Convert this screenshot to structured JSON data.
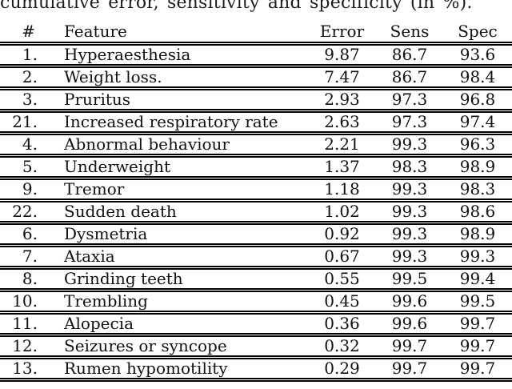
{
  "caption": "cumulative error, sensitivity and specificity (in %).",
  "table": {
    "headers": {
      "num": "#",
      "feature": "Feature",
      "error": "Error",
      "sens": "Sens",
      "spec": "Spec"
    },
    "rows": [
      {
        "num": "1.",
        "feature": "Hyperaesthesia",
        "error": "9.87",
        "sens": "86.7",
        "spec": "93.6"
      },
      {
        "num": "2.",
        "feature": "Weight loss.",
        "error": "7.47",
        "sens": "86.7",
        "spec": "98.4"
      },
      {
        "num": "3.",
        "feature": "Pruritus",
        "error": "2.93",
        "sens": "97.3",
        "spec": "96.8"
      },
      {
        "num": "21.",
        "feature": "Increased respiratory rate",
        "error": "2.63",
        "sens": "97.3",
        "spec": "97.4"
      },
      {
        "num": "4.",
        "feature": "Abnormal behaviour",
        "error": "2.21",
        "sens": "99.3",
        "spec": "96.3"
      },
      {
        "num": "5.",
        "feature": "Underweight",
        "error": "1.37",
        "sens": "98.3",
        "spec": "98.9"
      },
      {
        "num": "9.",
        "feature": "Tremor",
        "error": "1.18",
        "sens": "99.3",
        "spec": "98.3"
      },
      {
        "num": "22.",
        "feature": "Sudden death",
        "error": "1.02",
        "sens": "99.3",
        "spec": "98.6"
      },
      {
        "num": "6.",
        "feature": "Dysmetria",
        "error": "0.92",
        "sens": "99.3",
        "spec": "98.9"
      },
      {
        "num": "7.",
        "feature": "Ataxia",
        "error": "0.67",
        "sens": "99.3",
        "spec": "99.3"
      },
      {
        "num": "8.",
        "feature": "Grinding teeth",
        "error": "0.55",
        "sens": "99.5",
        "spec": "99.4"
      },
      {
        "num": "10.",
        "feature": "Trembling",
        "error": "0.45",
        "sens": "99.6",
        "spec": "99.5"
      },
      {
        "num": "11.",
        "feature": "Alopecia",
        "error": "0.36",
        "sens": "99.6",
        "spec": "99.7"
      },
      {
        "num": "12.",
        "feature": "Seizures or syncope",
        "error": "0.32",
        "sens": "99.7",
        "spec": "99.7"
      },
      {
        "num": "13.",
        "feature": "Rumen hypomotility",
        "error": "0.29",
        "sens": "99.7",
        "spec": "99.7"
      }
    ]
  }
}
